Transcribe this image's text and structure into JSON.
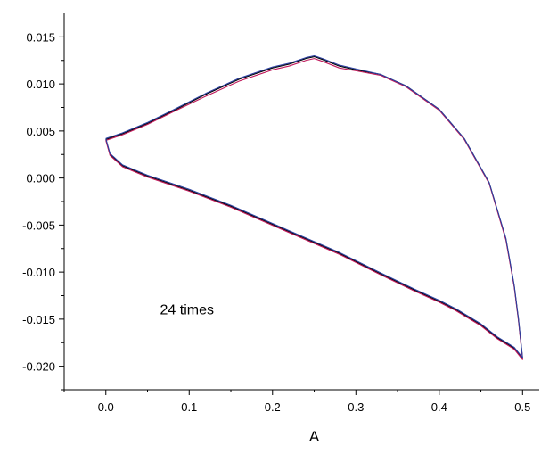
{
  "chart_data": {
    "type": "line",
    "title": "",
    "xlabel": "A",
    "ylabel": "",
    "xlim": [
      -0.05,
      0.52
    ],
    "ylim": [
      -0.0225,
      0.0175
    ],
    "x_ticks": [
      "0.0",
      "0.1",
      "0.2",
      "0.3",
      "0.4",
      "0.5"
    ],
    "y_ticks": [
      "-0.020",
      "-0.015",
      "-0.010",
      "-0.005",
      "0.000",
      "0.005",
      "0.010",
      "0.015"
    ],
    "grid": false,
    "legend": "none",
    "annotations": [
      {
        "text": "24 times",
        "x": 0.065,
        "y": -0.0145
      }
    ],
    "series": [
      {
        "color": "#000000",
        "x": [
          0.0,
          0.02,
          0.05,
          0.08,
          0.12,
          0.16,
          0.2,
          0.22,
          0.24,
          0.25,
          0.26,
          0.28,
          0.3,
          0.33,
          0.36,
          0.4,
          0.43,
          0.46,
          0.48,
          0.49,
          0.495,
          0.5,
          0.49,
          0.47,
          0.45,
          0.42,
          0.4,
          0.37,
          0.33,
          0.28,
          0.22,
          0.15,
          0.1,
          0.05,
          0.02,
          0.005,
          0.0
        ],
        "y": [
          0.0041,
          0.0047,
          0.0058,
          0.0071,
          0.0089,
          0.0105,
          0.0117,
          0.0121,
          0.0127,
          0.0129,
          0.0126,
          0.0119,
          0.0115,
          0.011,
          0.0098,
          0.0073,
          0.0042,
          -0.0005,
          -0.0065,
          -0.0115,
          -0.015,
          -0.0192,
          -0.0181,
          -0.017,
          -0.0156,
          -0.014,
          -0.0131,
          -0.0119,
          -0.0102,
          -0.008,
          -0.0057,
          -0.003,
          -0.0013,
          0.0002,
          0.0013,
          0.0025,
          0.0041
        ]
      },
      {
        "color": "#c0185a",
        "x": [
          0.0,
          0.02,
          0.05,
          0.08,
          0.12,
          0.16,
          0.2,
          0.22,
          0.24,
          0.25,
          0.26,
          0.28,
          0.3,
          0.33,
          0.36,
          0.4,
          0.43,
          0.46,
          0.48,
          0.49,
          0.495,
          0.5,
          0.49,
          0.47,
          0.45,
          0.42,
          0.4,
          0.37,
          0.33,
          0.28,
          0.22,
          0.15,
          0.1,
          0.05,
          0.02,
          0.005,
          0.0
        ],
        "y": [
          0.004,
          0.0046,
          0.0057,
          0.007,
          0.0087,
          0.0103,
          0.0115,
          0.0119,
          0.0125,
          0.0127,
          0.0124,
          0.0117,
          0.0114,
          0.0109,
          0.0097,
          0.0072,
          0.0041,
          -0.0006,
          -0.0066,
          -0.0116,
          -0.0151,
          -0.0193,
          -0.0182,
          -0.0171,
          -0.0157,
          -0.0141,
          -0.0132,
          -0.012,
          -0.0103,
          -0.0081,
          -0.0058,
          -0.0031,
          -0.0014,
          0.0001,
          0.0012,
          0.0024,
          0.004
        ]
      },
      {
        "color": "#2a3fa0",
        "x": [
          0.0,
          0.02,
          0.05,
          0.08,
          0.12,
          0.16,
          0.2,
          0.22,
          0.24,
          0.25,
          0.26,
          0.28,
          0.3,
          0.33,
          0.36,
          0.4,
          0.43,
          0.46,
          0.48,
          0.49,
          0.495,
          0.5,
          0.49,
          0.47,
          0.45,
          0.42,
          0.4,
          0.37,
          0.33,
          0.28,
          0.22,
          0.15,
          0.1,
          0.05,
          0.02,
          0.005,
          0.0
        ],
        "y": [
          0.0042,
          0.0048,
          0.0059,
          0.0072,
          0.009,
          0.0106,
          0.0118,
          0.0122,
          0.0128,
          0.013,
          0.0127,
          0.012,
          0.0116,
          0.011,
          0.0098,
          0.0073,
          0.0042,
          -0.0005,
          -0.0064,
          -0.0114,
          -0.0149,
          -0.0191,
          -0.018,
          -0.0169,
          -0.0155,
          -0.0139,
          -0.013,
          -0.0118,
          -0.0101,
          -0.0079,
          -0.0056,
          -0.0029,
          -0.0012,
          0.0003,
          0.0014,
          0.0026,
          0.0042
        ]
      }
    ]
  }
}
